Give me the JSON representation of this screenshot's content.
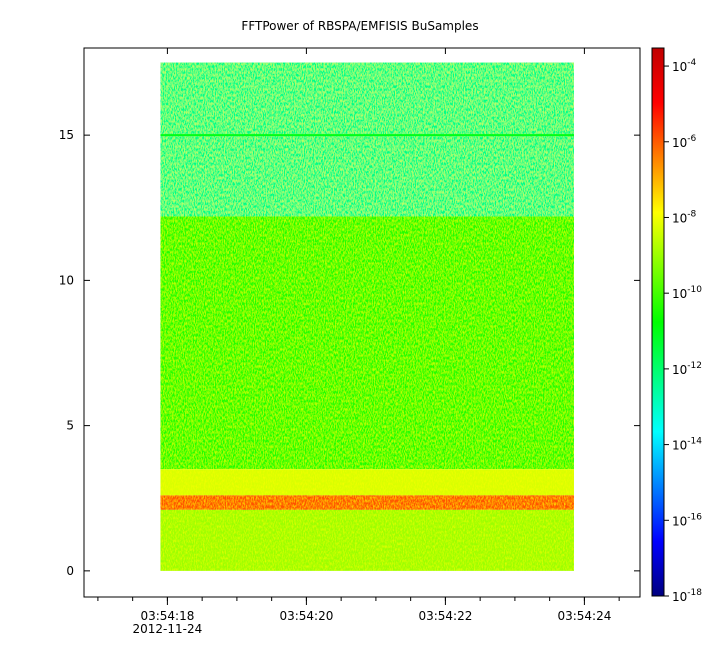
{
  "chart_data": {
    "type": "heatmap",
    "title": "FFTPower of RBSPA/EMFISIS  BuSamples",
    "xlabel": "",
    "ylabel": "",
    "x_axis": {
      "kind": "time",
      "start": "03:54:16.8",
      "end": "03:54:24.8",
      "major_ticks": [
        {
          "t": 18,
          "label": "03:54:18",
          "sublabel": "2012-11-24"
        },
        {
          "t": 20,
          "label": "03:54:20",
          "sublabel": ""
        },
        {
          "t": 22,
          "label": "03:54:22",
          "sublabel": ""
        },
        {
          "t": 24,
          "label": "03:54:24",
          "sublabel": ""
        }
      ],
      "minor_tick_step": 0.5
    },
    "y_axis": {
      "range": [
        -0.9,
        18.0
      ],
      "ticks": [
        0,
        5,
        10,
        15
      ]
    },
    "data_extent": {
      "x_start": "03:54:17.9",
      "x_end": "03:54:23.85",
      "y_min": 0,
      "y_max": 17.5
    },
    "colorbar": {
      "scale": "log",
      "range": [
        1e-18,
        0.0003
      ],
      "colormap": [
        "#00007f",
        "#0000ff",
        "#0080ff",
        "#00ffff",
        "#00ff80",
        "#00ff00",
        "#80ff00",
        "#ffff00",
        "#ff8000",
        "#ff0000",
        "#c00000"
      ],
      "ticks": [
        {
          "value": 0.0001,
          "base": "10",
          "exp": "-4"
        },
        {
          "value": 1e-06,
          "base": "10",
          "exp": "-6"
        },
        {
          "value": 1e-08,
          "base": "10",
          "exp": "-8"
        },
        {
          "value": 1e-10,
          "base": "10",
          "exp": "-10"
        },
        {
          "value": 1e-12,
          "base": "10",
          "exp": "-12"
        },
        {
          "value": 1e-14,
          "base": "10",
          "exp": "-14"
        },
        {
          "value": 1e-16,
          "base": "10",
          "exp": "-16"
        },
        {
          "value": 1e-18,
          "base": "10",
          "exp": "-18"
        }
      ]
    },
    "bands": [
      {
        "y_min": 12.2,
        "y_max": 17.5,
        "log_power": -12.3
      },
      {
        "y_min": 3.5,
        "y_max": 12.2,
        "log_power": -10.4
      },
      {
        "y_min": 2.6,
        "y_max": 3.5,
        "log_power": -8.3
      },
      {
        "y_min": 2.1,
        "y_max": 2.6,
        "log_power": -5.9
      },
      {
        "y_min": 0,
        "y_max": 2.1,
        "log_power": -9.0
      }
    ],
    "features": [
      {
        "y": 15.0,
        "log_power": -11.0,
        "label": ""
      }
    ]
  }
}
